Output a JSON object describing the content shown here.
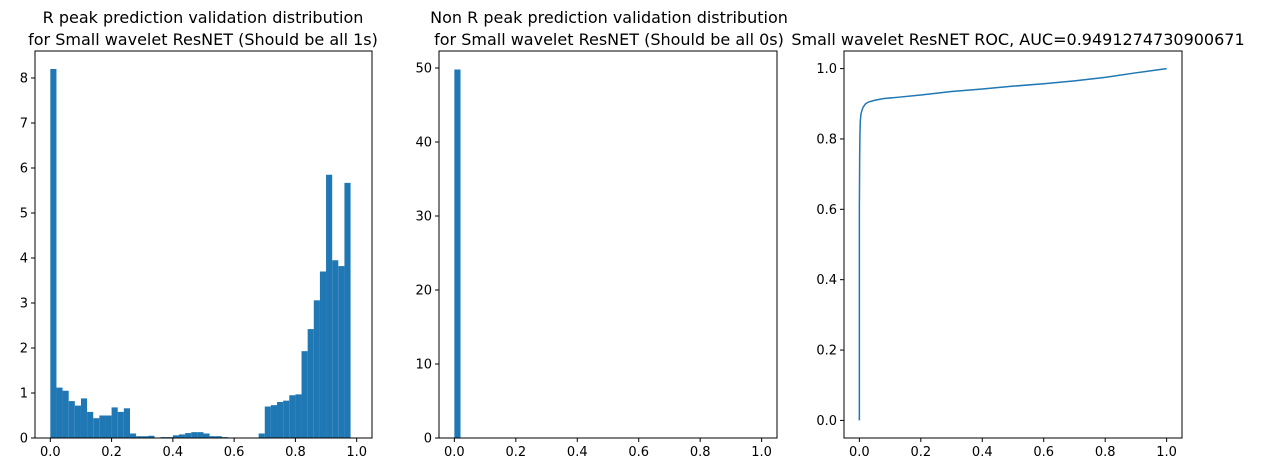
{
  "colors": {
    "series": "#1f77b4",
    "frame": "#000000",
    "background": "#ffffff"
  },
  "chart_data": [
    {
      "type": "bar",
      "histogram": true,
      "title": [
        "R peak prediction validation distribution",
        "for Small wavelet ResNET (Should be all 1s)"
      ],
      "xlabel": "",
      "ylabel": "",
      "xlim": [
        -0.05,
        1.05
      ],
      "ylim": [
        0,
        8.6
      ],
      "grid": false,
      "bin_start": 0.0,
      "bin_width": 0.02,
      "values": [
        8.2,
        1.12,
        1.05,
        0.82,
        0.72,
        0.88,
        0.58,
        0.44,
        0.5,
        0.5,
        0.68,
        0.58,
        0.66,
        0.1,
        0.04,
        0.04,
        0.05,
        0.0,
        0.02,
        0.02,
        0.06,
        0.08,
        0.11,
        0.13,
        0.13,
        0.1,
        0.04,
        0.04,
        0.02,
        0.0,
        0.0,
        0.0,
        0.0,
        0.0,
        0.1,
        0.7,
        0.73,
        0.8,
        0.83,
        0.95,
        0.97,
        1.93,
        2.42,
        3.06,
        3.7,
        5.85,
        3.95,
        3.82,
        5.67,
        0.0
      ],
      "xticks": [
        0.0,
        0.2,
        0.4,
        0.6,
        0.8,
        1.0
      ],
      "xtick_labels": [
        "0.0",
        "0.2",
        "0.4",
        "0.6",
        "0.8",
        "1.0"
      ],
      "yticks": [
        0,
        1,
        2,
        3,
        4,
        5,
        6,
        7,
        8
      ],
      "ytick_labels": [
        "0",
        "1",
        "2",
        "3",
        "4",
        "5",
        "6",
        "7",
        "8"
      ]
    },
    {
      "type": "bar",
      "histogram": true,
      "title": [
        "Non R peak prediction validation distribution",
        "for Small wavelet ResNET (Should be all 0s)"
      ],
      "xlabel": "",
      "ylabel": "",
      "xlim": [
        -0.05,
        1.05
      ],
      "ylim": [
        0,
        52.3
      ],
      "grid": false,
      "bin_start": 0.0,
      "bin_width": 0.02,
      "values": [
        49.8,
        0.0,
        0.0,
        0.0,
        0.0,
        0.0,
        0.0,
        0.0,
        0.0,
        0.0,
        0.0,
        0.0,
        0.0,
        0.0,
        0.0,
        0.0,
        0.0,
        0.0,
        0.0,
        0.0,
        0.0,
        0.0,
        0.0,
        0.0,
        0.0,
        0.0,
        0.0,
        0.0,
        0.0,
        0.0,
        0.0,
        0.0,
        0.0,
        0.0,
        0.0,
        0.0,
        0.0,
        0.0,
        0.0,
        0.0,
        0.0,
        0.0,
        0.0,
        0.0,
        0.0,
        0.0,
        0.0,
        0.0,
        0.0,
        0.0
      ],
      "xticks": [
        0.0,
        0.2,
        0.4,
        0.6,
        0.8,
        1.0
      ],
      "xtick_labels": [
        "0.0",
        "0.2",
        "0.4",
        "0.6",
        "0.8",
        "1.0"
      ],
      "yticks": [
        0,
        10,
        20,
        30,
        40,
        50
      ],
      "ytick_labels": [
        "0",
        "10",
        "20",
        "30",
        "40",
        "50"
      ]
    },
    {
      "type": "line",
      "title": [
        "Small wavelet ResNET ROC, AUC=0.9491274730900671"
      ],
      "xlabel": "",
      "ylabel": "",
      "xlim": [
        -0.05,
        1.05
      ],
      "ylim": [
        -0.05,
        1.05
      ],
      "grid": false,
      "series": [
        {
          "x": [
            0.0,
            0.0,
            0.001,
            0.002,
            0.003,
            0.005,
            0.008,
            0.012,
            0.02,
            0.03,
            0.05,
            0.08,
            0.12,
            0.2,
            0.3,
            0.4,
            0.5,
            0.6,
            0.7,
            0.8,
            0.9,
            1.0
          ],
          "y": [
            0.0,
            0.6,
            0.75,
            0.82,
            0.85,
            0.87,
            0.88,
            0.89,
            0.9,
            0.905,
            0.91,
            0.915,
            0.918,
            0.925,
            0.935,
            0.942,
            0.95,
            0.957,
            0.965,
            0.975,
            0.988,
            1.0
          ]
        }
      ],
      "xticks": [
        0.0,
        0.2,
        0.4,
        0.6,
        0.8,
        1.0
      ],
      "xtick_labels": [
        "0.0",
        "0.2",
        "0.4",
        "0.6",
        "0.8",
        "1.0"
      ],
      "yticks": [
        0.0,
        0.2,
        0.4,
        0.6,
        0.8,
        1.0
      ],
      "ytick_labels": [
        "0.0",
        "0.2",
        "0.4",
        "0.6",
        "0.8",
        "1.0"
      ]
    }
  ]
}
